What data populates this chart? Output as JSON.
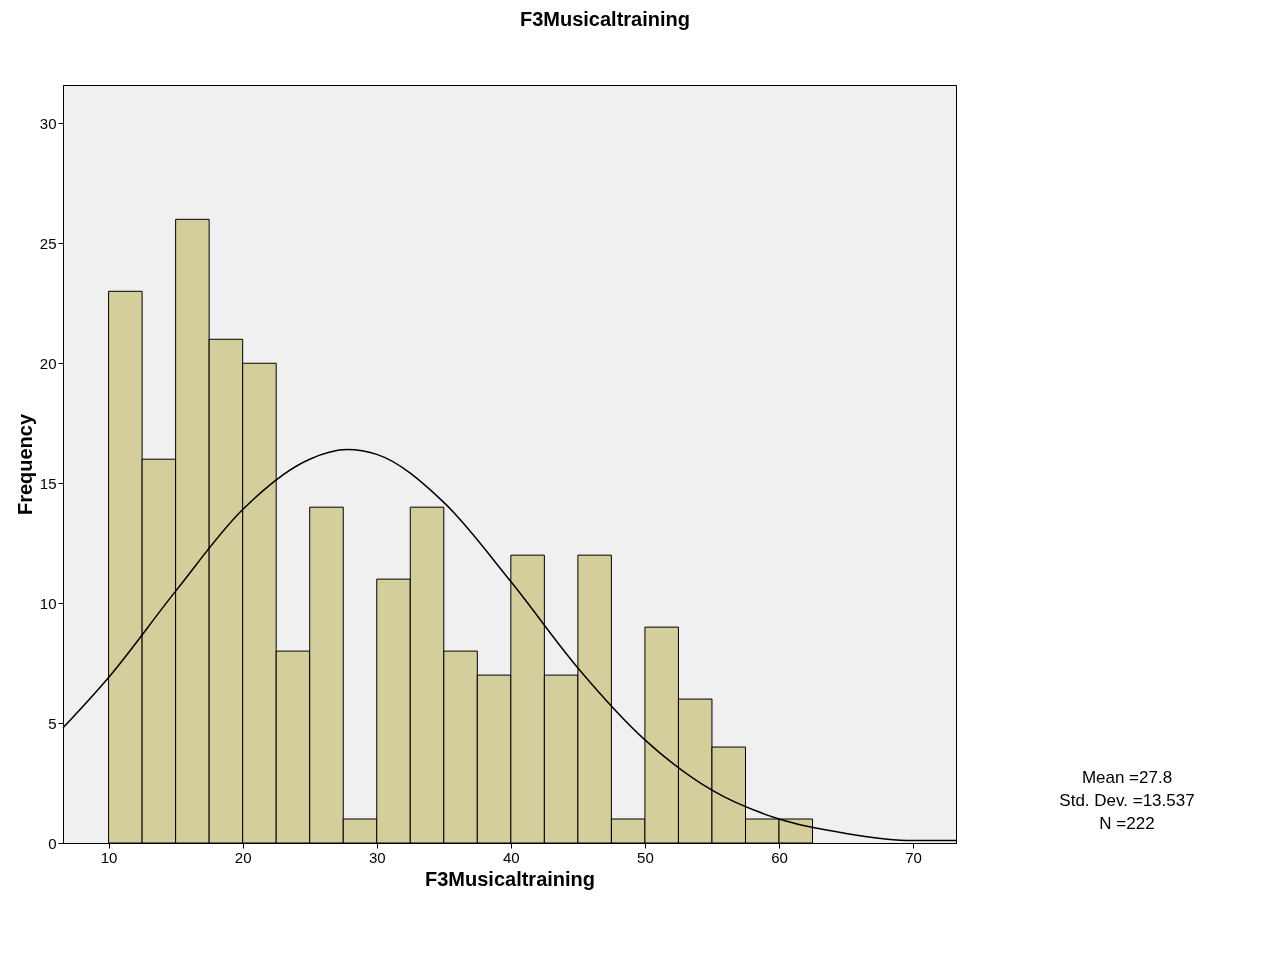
{
  "chart_data": {
    "type": "histogram",
    "title": "F3Musicaltraining",
    "xlabel": "F3Musicaltraining",
    "ylabel": "Frequency",
    "bins": [
      10,
      12.5,
      15,
      17.5,
      20,
      22.5,
      25,
      27.5,
      30,
      32.5,
      35,
      37.5,
      40,
      42.5,
      45,
      47.5,
      50,
      52.5,
      55,
      57.5,
      60,
      62.5
    ],
    "values": [
      23,
      16,
      26,
      21,
      20,
      8,
      14,
      1,
      11,
      14,
      8,
      7,
      12,
      7,
      12,
      1,
      9,
      6,
      4,
      1,
      1
    ],
    "color": "#d3ce9b",
    "series": [
      {
        "type": "line",
        "color": "#000000",
        "x": [
          6.6,
          10,
          15,
          20,
          25,
          27.8,
          30,
          35,
          40,
          45,
          50,
          55,
          60,
          65,
          70,
          73.2
        ],
        "values": [
          4.8,
          6.9,
          10.5,
          13.9,
          16.0,
          16.4,
          16.2,
          14.2,
          10.9,
          7.3,
          4.3,
          2.2,
          1.0,
          0.4,
          0.1,
          0.1
        ]
      }
    ],
    "xlim": [
      6.6,
      73.2
    ],
    "xticks": [
      10,
      20,
      30,
      40,
      50,
      60,
      70
    ],
    "ylim": [
      0,
      31.6
    ],
    "yticks": [
      0,
      5,
      10,
      15,
      20,
      25,
      30
    ],
    "grid": false,
    "annotations": [
      "Mean =27.8",
      "Std. Dev. =13.537",
      "N =222"
    ]
  }
}
